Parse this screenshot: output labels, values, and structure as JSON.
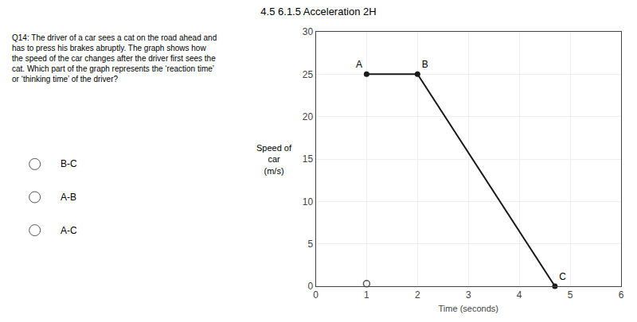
{
  "chart_data": {
    "type": "line",
    "title": "4.5 6.1.5 Acceleration 2H",
    "xlabel": "Time (seconds)",
    "ylabel": "Speed of\ncar\n(m/s)",
    "xlim": [
      0,
      6
    ],
    "ylim": [
      0,
      30
    ],
    "xticks": [
      0,
      1,
      2,
      3,
      4,
      5,
      6
    ],
    "yticks": [
      0,
      5,
      10,
      15,
      20,
      25,
      30
    ],
    "grid": true,
    "series": [
      {
        "type": "line",
        "x": [
          1,
          2,
          4.7
        ],
        "values": [
          25,
          25,
          0
        ],
        "labels": [
          "A",
          "B",
          "C"
        ],
        "color": "#1a1a1a",
        "marker": "circle"
      },
      {
        "type": "scatter",
        "x": [
          1.0
        ],
        "values": [
          0.3
        ],
        "color": "#555555",
        "marker": "open circle"
      }
    ],
    "annotations": [
      "Q14: The driver of a car sees a cat on the road ahead and\nhas to press his brakes abruptly. The graph shows how\nthe speed of the car changes after the driver first sees the\ncat. Which part of the graph represents the ‘reaction time’\nor ‘thinking time’ of the driver?",
      "B-C",
      "A-B",
      "A-C"
    ]
  }
}
